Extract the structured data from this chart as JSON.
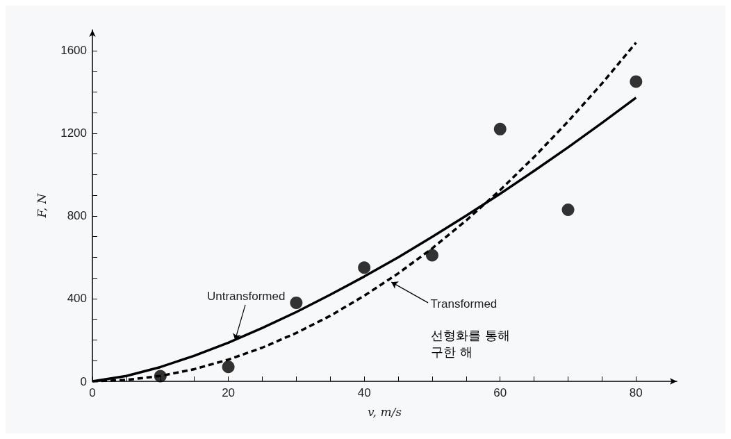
{
  "chart_data": {
    "type": "scatter",
    "xlabel": "v, m/s",
    "ylabel": "F, N",
    "xlim": [
      0,
      86
    ],
    "xticks": [
      0,
      {
        "value": 5,
        "label": null
      },
      {
        "value": 10,
        "label": null
      },
      {
        "value": 15,
        "label": null
      },
      20,
      {
        "value": 25,
        "label": null
      },
      {
        "value": 30,
        "label": null
      },
      {
        "value": 35,
        "label": null
      },
      40,
      {
        "value": 45,
        "label": null
      },
      {
        "value": 50,
        "label": null
      },
      {
        "value": 55,
        "label": null
      },
      60,
      {
        "value": 65,
        "label": null
      },
      {
        "value": 70,
        "label": null
      },
      {
        "value": 75,
        "label": null
      },
      80
    ],
    "ylim": [
      0,
      1700
    ],
    "yticks": [
      0,
      {
        "value": 100,
        "label": null
      },
      {
        "value": 200,
        "label": null
      },
      {
        "value": 300,
        "label": null
      },
      400,
      {
        "value": 500,
        "label": null
      },
      {
        "value": 600,
        "label": null
      },
      {
        "value": 700,
        "label": null
      },
      800,
      {
        "value": 900,
        "label": null
      },
      {
        "value": 1000,
        "label": null
      },
      {
        "value": 1100,
        "label": null
      },
      1200,
      {
        "value": 1300,
        "label": null
      },
      {
        "value": 1400,
        "label": null
      },
      {
        "value": 1500,
        "label": null
      },
      1600
    ],
    "grid": false,
    "series": [
      {
        "color": "#000000",
        "marker": "circle",
        "x": [
          10,
          20,
          30,
          40,
          50,
          60,
          70,
          80
        ],
        "values": [
          25,
          70,
          380,
          550,
          610,
          1220,
          830,
          1450
        ]
      },
      {
        "type": "line",
        "color": "#000000",
        "marker": "none",
        "line_style": "solid",
        "x": [
          0,
          5,
          10,
          15,
          20,
          25,
          30,
          35,
          40,
          45,
          50,
          55,
          60,
          65,
          70,
          75,
          80
        ],
        "values": [
          0,
          26,
          69,
          124,
          187,
          258,
          335,
          419,
          507,
          600,
          699,
          801,
          907,
          1018,
          1132,
          1250,
          1372
        ]
      },
      {
        "type": "line",
        "color": "#000000",
        "marker": "none",
        "line_style": "dashed",
        "x": [
          0,
          5,
          10,
          15,
          20,
          25,
          30,
          35,
          40,
          45,
          50,
          55,
          60,
          65,
          70,
          75,
          80
        ],
        "values": [
          0,
          7,
          26,
          59,
          105,
          163,
          234,
          317,
          414,
          522,
          643,
          778,
          925,
          1085,
          1257,
          1441,
          1638
        ]
      }
    ],
    "annotations": [
      {
        "text": "Untransformed",
        "x": 21,
        "y": 200
      },
      {
        "text": "Transformed",
        "x": 44,
        "y": 480
      },
      "선형화를 통해\n구한 해"
    ]
  }
}
